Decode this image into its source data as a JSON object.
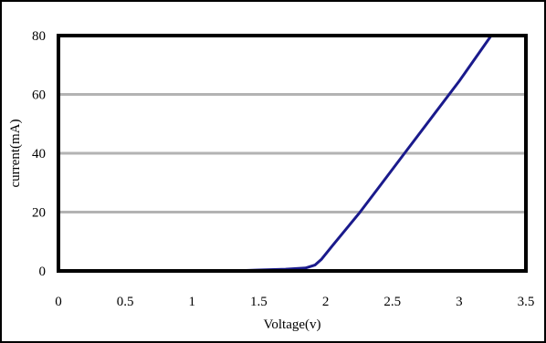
{
  "chart_data": {
    "type": "line",
    "title": "",
    "xlabel": "Voltage(v)",
    "ylabel": "current(mA)",
    "xlim": [
      0,
      3.5
    ],
    "ylim": [
      0,
      80
    ],
    "xticks": [
      "0",
      "0.5",
      "1",
      "1.5",
      "2",
      "2.5",
      "3",
      "3.5"
    ],
    "yticks": [
      "0",
      "20",
      "40",
      "60",
      "80"
    ],
    "grid": "horizontal",
    "legend": "none",
    "series": [
      {
        "color": "#1a1a8c",
        "x": [
          0,
          0.5,
          1.0,
          1.3,
          1.5,
          1.7,
          1.85,
          1.92,
          1.97,
          2.05,
          2.15,
          2.25,
          2.4,
          2.6,
          2.8,
          3.0,
          3.24
        ],
        "y": [
          0,
          0,
          0,
          0,
          0.3,
          0.6,
          1.0,
          2.0,
          4.0,
          8.5,
          14.0,
          19.5,
          28.5,
          40.5,
          52.5,
          64.5,
          80
        ]
      }
    ]
  }
}
